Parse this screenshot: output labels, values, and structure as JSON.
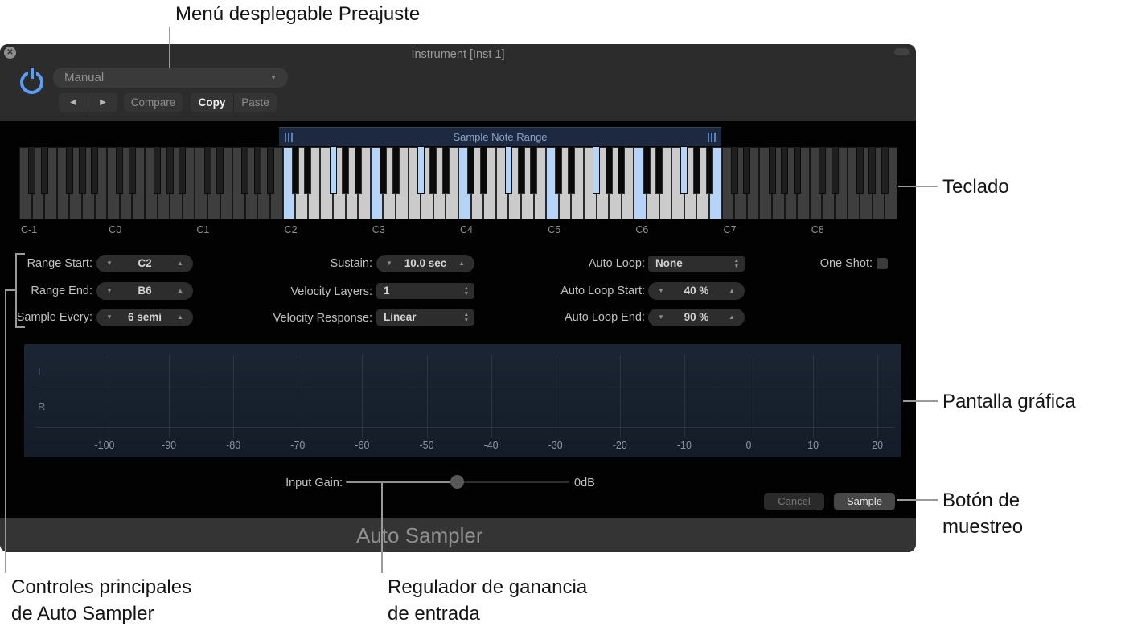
{
  "annotations": {
    "preset_menu": "Menú desplegable Preajuste",
    "keyboard": "Teclado",
    "display": "Pantalla gráfica",
    "sample_button_line1": "Botón de",
    "sample_button_line2": "muestreo",
    "main_controls_line1": "Controles principales",
    "main_controls_line2": "de Auto Sampler",
    "input_gain_line1": "Regulador de ganancia",
    "input_gain_line2": "de entrada"
  },
  "window": {
    "title": "Instrument [Inst 1]",
    "preset_value": "Manual",
    "compare_label": "Compare",
    "copy_label": "Copy",
    "paste_label": "Paste"
  },
  "icons": {
    "close": "✕",
    "caret_down": "▼",
    "nav_back": "◀",
    "nav_fwd": "▶",
    "step_down": "▼",
    "step_up": "▲",
    "small_up": "▲",
    "small_down": "▼"
  },
  "keyboard": {
    "range_overlay_label": "Sample Note Range",
    "octave_labels": [
      "C-1",
      "C0",
      "C1",
      "C2",
      "C3",
      "C4",
      "C5",
      "C6",
      "C7",
      "C8"
    ],
    "octave_count": 10,
    "first_octave": -1,
    "range_start_note": "C2",
    "range_end_note": "B6",
    "sampled_notes": [
      "C2",
      "F#2",
      "C3",
      "F#3",
      "C4",
      "F#4",
      "C5",
      "F#5",
      "C6",
      "F#6",
      "B6"
    ],
    "colors": {
      "in_range_white": "#cbcbcb",
      "out_of_range_white": "#3e3e3e",
      "sampled_blue": "#b5d4f8"
    }
  },
  "controls": {
    "range_start_label": "Range Start:",
    "range_start_value": "C2",
    "range_end_label": "Range End:",
    "range_end_value": "B6",
    "sample_every_label": "Sample Every:",
    "sample_every_value": "6 semi",
    "sustain_label": "Sustain:",
    "sustain_value": "10.0 sec",
    "velocity_layers_label": "Velocity Layers:",
    "velocity_layers_value": "1",
    "velocity_response_label": "Velocity Response:",
    "velocity_response_value": "Linear",
    "auto_loop_label": "Auto Loop:",
    "auto_loop_value": "None",
    "auto_loop_start_label": "Auto Loop Start:",
    "auto_loop_start_value": "40 %",
    "auto_loop_end_label": "Auto Loop End:",
    "auto_loop_end_value": "90 %",
    "one_shot_label": "One Shot:",
    "one_shot_checked": false
  },
  "display": {
    "left_channel": "L",
    "right_channel": "R",
    "ticks": [
      "-100",
      "-90",
      "-80",
      "-70",
      "-60",
      "-50",
      "-40",
      "-30",
      "-20",
      "-10",
      "0",
      "10",
      "20"
    ]
  },
  "gain": {
    "label": "Input Gain:",
    "value": "0dB"
  },
  "buttons": {
    "cancel_label": "Cancel",
    "sample_label": "Sample"
  },
  "footer": {
    "title": "Auto Sampler"
  }
}
